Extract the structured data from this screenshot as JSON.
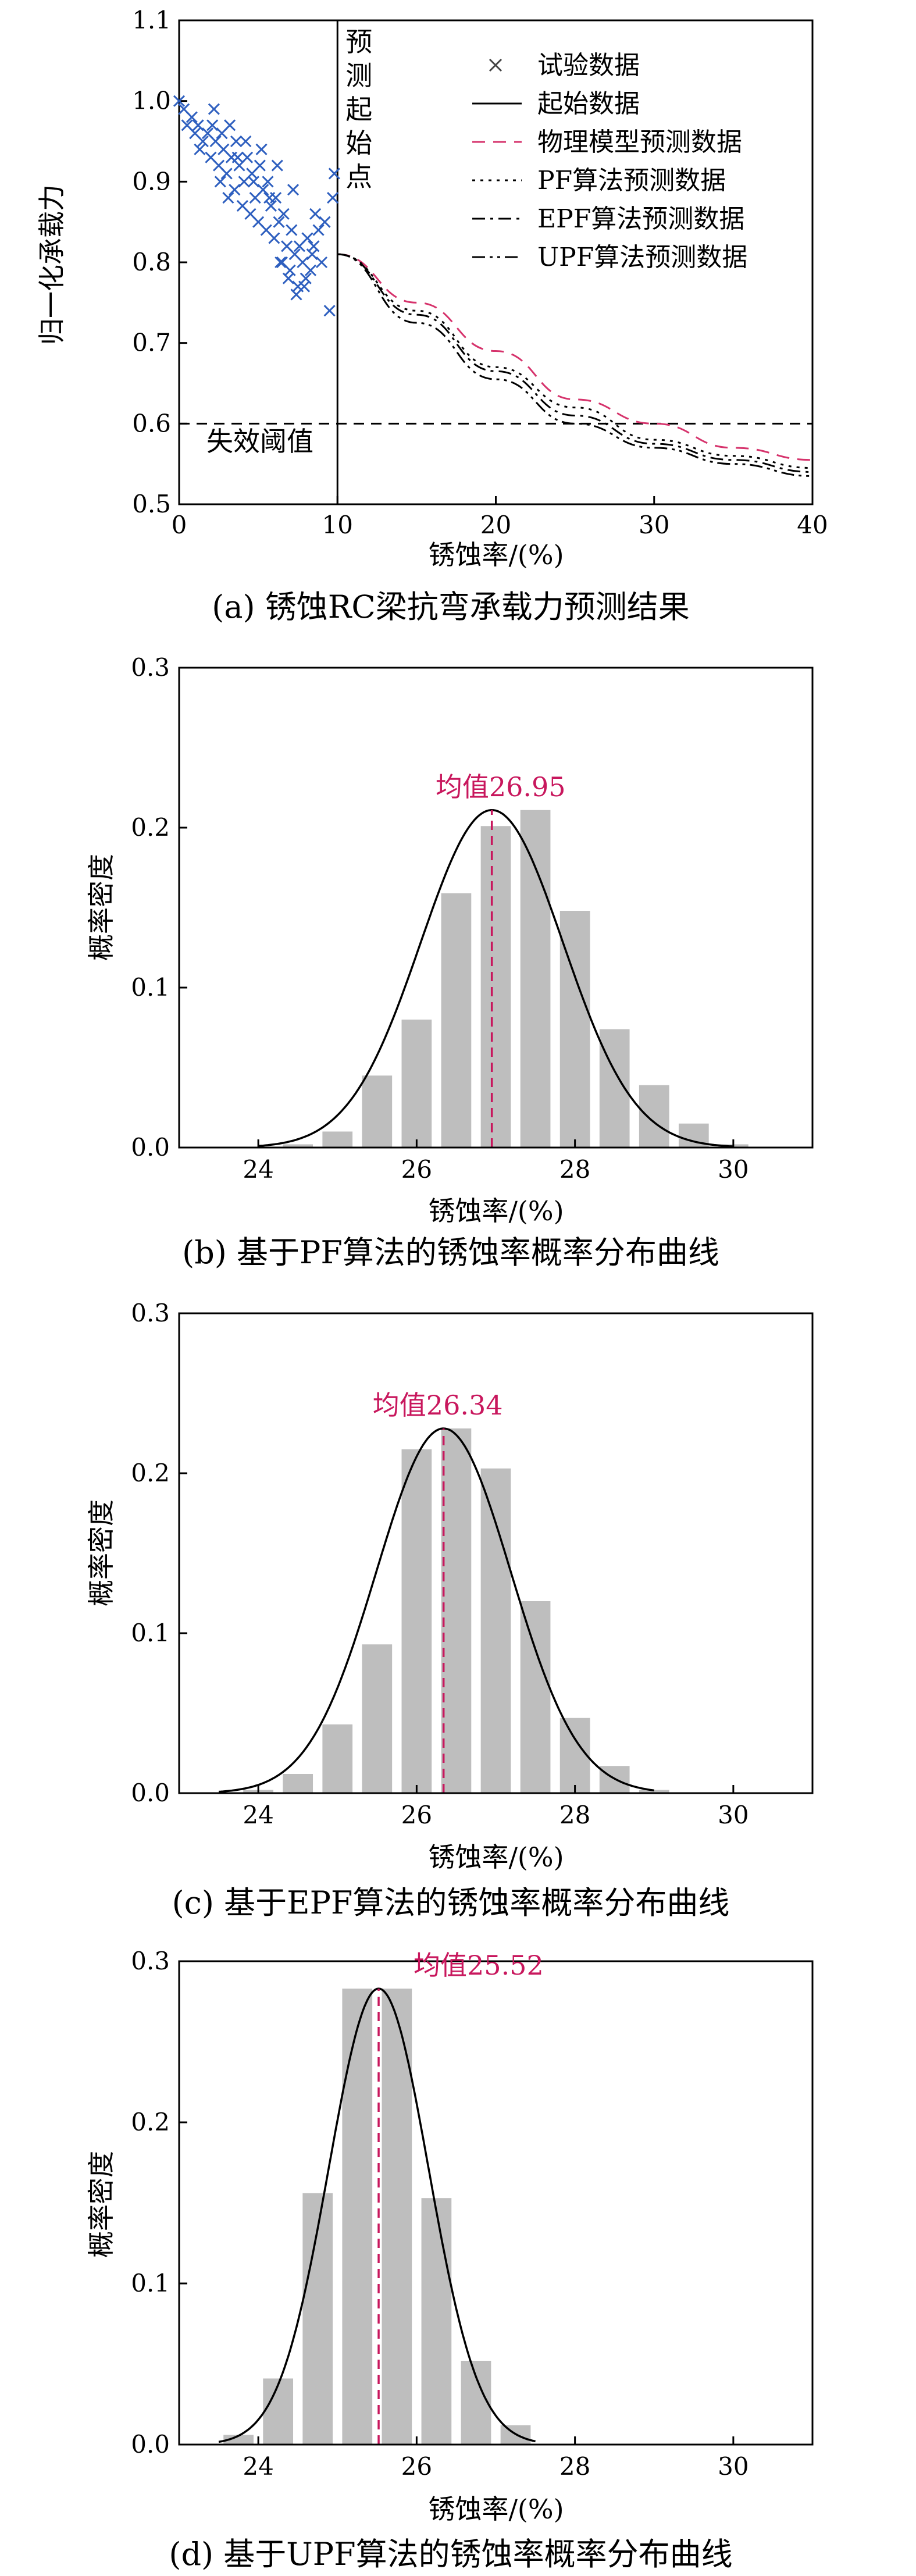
{
  "chart_data": [
    {
      "type": "scatter",
      "caption": "(a) 锈蚀RC梁抗弯承载力预测结果",
      "xlabel": "锈蚀率/(%)",
      "ylabel": "归一化承载力",
      "xlim": [
        0,
        40
      ],
      "ylim": [
        0.5,
        1.1
      ],
      "xticks": [
        "0",
        "10",
        "20",
        "30",
        "40"
      ],
      "yticks": [
        "0.5",
        "0.6",
        "0.7",
        "0.8",
        "0.9",
        "1.0",
        "1.1"
      ],
      "legend_position": "top-right",
      "grid": false,
      "colors": {
        "scatter": "#2e5fbf",
        "physical": "#d6336c",
        "axis": "#000000"
      },
      "annotations": {
        "start_line_x": 10,
        "start_label": "预测起始点",
        "threshold_y": 0.6,
        "threshold_label": "失效阈值"
      },
      "series": [
        {
          "name": "试验数据",
          "style": "marker-x",
          "points": [
            [
              0,
              1.0
            ],
            [
              0.3,
              0.99
            ],
            [
              0.5,
              0.97
            ],
            [
              0.8,
              0.98
            ],
            [
              1.0,
              0.96
            ],
            [
              1.2,
              0.97
            ],
            [
              1.3,
              0.94
            ],
            [
              1.5,
              0.95
            ],
            [
              1.8,
              0.96
            ],
            [
              2.0,
              0.93
            ],
            [
              2.1,
              0.97
            ],
            [
              2.3,
              0.95
            ],
            [
              2.5,
              0.92
            ],
            [
              2.6,
              0.9
            ],
            [
              2.8,
              0.94
            ],
            [
              3.0,
              0.91
            ],
            [
              3.1,
              0.88
            ],
            [
              3.3,
              0.93
            ],
            [
              3.5,
              0.89
            ],
            [
              3.6,
              0.95
            ],
            [
              3.8,
              0.92
            ],
            [
              4.0,
              0.87
            ],
            [
              4.1,
              0.9
            ],
            [
              4.3,
              0.93
            ],
            [
              4.5,
              0.86
            ],
            [
              4.6,
              0.91
            ],
            [
              4.8,
              0.88
            ],
            [
              5.0,
              0.85
            ],
            [
              5.1,
              0.92
            ],
            [
              5.3,
              0.89
            ],
            [
              5.5,
              0.84
            ],
            [
              5.6,
              0.9
            ],
            [
              5.8,
              0.87
            ],
            [
              6.0,
              0.83
            ],
            [
              6.1,
              0.88
            ],
            [
              6.3,
              0.85
            ],
            [
              6.5,
              0.8
            ],
            [
              6.6,
              0.86
            ],
            [
              6.8,
              0.82
            ],
            [
              7.0,
              0.79
            ],
            [
              7.1,
              0.84
            ],
            [
              7.3,
              0.81
            ],
            [
              7.5,
              0.77
            ],
            [
              7.6,
              0.82
            ],
            [
              7.8,
              0.8
            ],
            [
              8.0,
              0.78
            ],
            [
              8.1,
              0.83
            ],
            [
              8.3,
              0.79
            ],
            [
              8.5,
              0.82
            ],
            [
              8.6,
              0.86
            ],
            [
              8.8,
              0.84
            ],
            [
              9.0,
              0.8
            ],
            [
              9.2,
              0.85
            ],
            [
              9.5,
              0.74
            ],
            [
              9.7,
              0.88
            ],
            [
              9.8,
              0.91
            ],
            [
              4.2,
              0.95
            ],
            [
              5.2,
              0.94
            ],
            [
              6.2,
              0.92
            ],
            [
              7.2,
              0.89
            ],
            [
              3.2,
              0.97
            ],
            [
              2.2,
              0.99
            ],
            [
              6.4,
              0.8
            ],
            [
              6.9,
              0.78
            ],
            [
              7.4,
              0.76
            ],
            [
              7.9,
              0.77
            ],
            [
              8.4,
              0.81
            ],
            [
              5.7,
              0.88
            ],
            [
              4.7,
              0.9
            ],
            [
              3.7,
              0.93
            ],
            [
              2.7,
              0.96
            ]
          ]
        },
        {
          "name": "起始数据",
          "style": "solid"
        },
        {
          "name": "物理模型预测数据",
          "style": "dashed",
          "x": [
            10,
            15,
            20,
            25,
            30,
            35,
            40
          ],
          "y": [
            0.81,
            0.75,
            0.69,
            0.63,
            0.6,
            0.57,
            0.555
          ]
        },
        {
          "name": "PF算法预测数据",
          "style": "dotted",
          "x": [
            10,
            15,
            20,
            25,
            30,
            35,
            40
          ],
          "y": [
            0.81,
            0.74,
            0.67,
            0.62,
            0.58,
            0.56,
            0.545
          ]
        },
        {
          "name": "EPF算法预测数据",
          "style": "dashdot",
          "x": [
            10,
            15,
            20,
            25,
            30,
            35,
            40
          ],
          "y": [
            0.81,
            0.735,
            0.665,
            0.61,
            0.575,
            0.555,
            0.54
          ]
        },
        {
          "name": "UPF算法预测数据",
          "style": "dashdotdot",
          "x": [
            10,
            15,
            20,
            25,
            30,
            35,
            40
          ],
          "y": [
            0.81,
            0.725,
            0.655,
            0.6,
            0.57,
            0.55,
            0.535
          ]
        }
      ]
    },
    {
      "type": "bar",
      "caption": "(b) 基于PF算法的锈蚀率概率分布曲线",
      "xlabel": "锈蚀率/(%)",
      "ylabel": "概率密度",
      "xlim": [
        23,
        31
      ],
      "ylim": [
        0,
        0.3
      ],
      "xticks": [
        "24",
        "26",
        "28",
        "30"
      ],
      "yticks": [
        "0.0",
        "0.1",
        "0.2",
        "0.3"
      ],
      "bin_width": 0.5,
      "bar_color": "#bebebe",
      "bins": [
        [
          24.5,
          0.002
        ],
        [
          25.0,
          0.01
        ],
        [
          25.5,
          0.045
        ],
        [
          26.0,
          0.08
        ],
        [
          26.5,
          0.159
        ],
        [
          27.0,
          0.201
        ],
        [
          27.5,
          0.211
        ],
        [
          28.0,
          0.148
        ],
        [
          28.5,
          0.074
        ],
        [
          29.0,
          0.039
        ],
        [
          29.5,
          0.015
        ],
        [
          30.0,
          0.002
        ]
      ],
      "fit": {
        "mean": 26.95,
        "sd": 0.9,
        "peak": 0.211,
        "xlim": [
          24.0,
          30.0
        ]
      },
      "mean_label": "均值26.95",
      "mean_color": "#c8175d"
    },
    {
      "type": "bar",
      "caption": "(c) 基于EPF算法的锈蚀率概率分布曲线",
      "xlabel": "锈蚀率/(%)",
      "ylabel": "概率密度",
      "xlim": [
        23,
        31
      ],
      "ylim": [
        0,
        0.3
      ],
      "xticks": [
        "24",
        "26",
        "28",
        "30"
      ],
      "yticks": [
        "0.0",
        "0.1",
        "0.2",
        "0.3"
      ],
      "bin_width": 0.5,
      "bar_color": "#bebebe",
      "bins": [
        [
          24.0,
          0.002
        ],
        [
          24.5,
          0.012
        ],
        [
          25.0,
          0.043
        ],
        [
          25.5,
          0.093
        ],
        [
          26.0,
          0.215
        ],
        [
          26.5,
          0.228
        ],
        [
          27.0,
          0.203
        ],
        [
          27.5,
          0.12
        ],
        [
          28.0,
          0.047
        ],
        [
          28.5,
          0.017
        ],
        [
          29.0,
          0.002
        ]
      ],
      "fit": {
        "mean": 26.34,
        "sd": 0.85,
        "peak": 0.228,
        "xlim": [
          23.5,
          29.0
        ]
      },
      "mean_label": "均值26.34",
      "mean_color": "#c8175d"
    },
    {
      "type": "bar",
      "caption": "(d) 基于UPF算法的锈蚀率概率分布曲线",
      "xlabel": "锈蚀率/(%)",
      "ylabel": "概率密度",
      "xlim": [
        23,
        31
      ],
      "ylim": [
        0,
        0.3
      ],
      "xticks": [
        "24",
        "26",
        "28",
        "30"
      ],
      "yticks": [
        "0.0",
        "0.1",
        "0.2",
        "0.3"
      ],
      "bin_width": 0.5,
      "bar_color": "#bebebe",
      "bins": [
        [
          23.75,
          0.006
        ],
        [
          24.25,
          0.041
        ],
        [
          24.75,
          0.156
        ],
        [
          25.25,
          0.283
        ],
        [
          25.75,
          0.283
        ],
        [
          26.25,
          0.153
        ],
        [
          26.75,
          0.052
        ],
        [
          27.25,
          0.012
        ]
      ],
      "fit": {
        "mean": 25.52,
        "sd": 0.63,
        "peak": 0.283,
        "xlim": [
          23.5,
          27.5
        ]
      },
      "mean_label": "均值25.52",
      "mean_color": "#c8175d"
    }
  ]
}
